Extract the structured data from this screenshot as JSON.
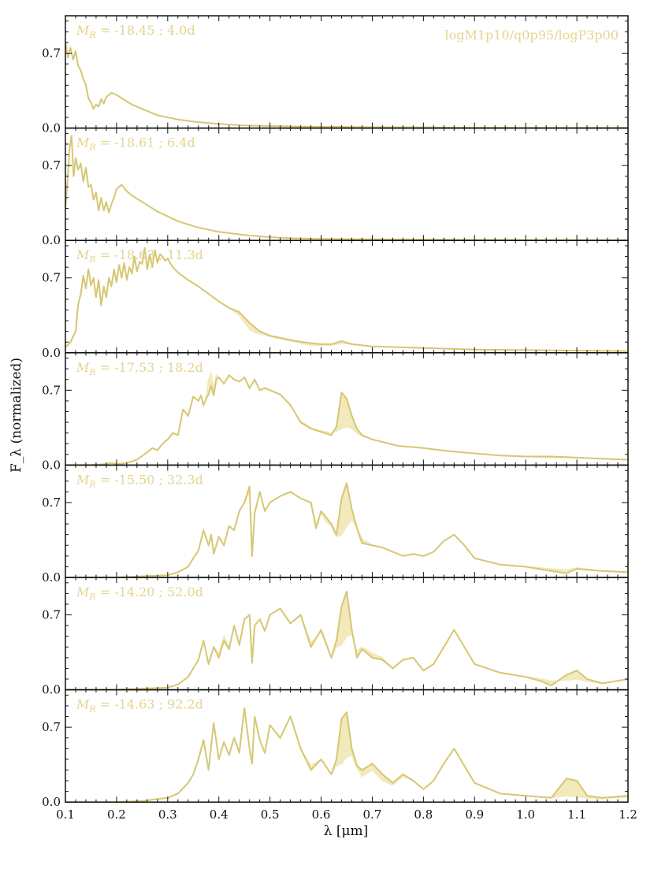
{
  "model": "logM1p10/q0p95/logP3p00",
  "colors": {
    "line": "#d6c772",
    "fill_light": "#f2e9bd",
    "fill_dark": "#d2c06a",
    "label": "#e3d48e",
    "axis": "#111111"
  },
  "chart_data": {
    "type": "line",
    "title": "",
    "xlabel": "λ [μm]",
    "ylabel": "F_λ (normalized)",
    "xlim": [
      0.1,
      1.2
    ],
    "ylim": [
      0.0,
      1.05
    ],
    "xticks": [
      0.1,
      0.2,
      0.3,
      0.4,
      0.5,
      0.6,
      0.7,
      0.8,
      0.9,
      1.0,
      1.1,
      1.2
    ],
    "xtick_labels": [
      "0.1",
      "0.2",
      "0.3",
      "0.4",
      "0.5",
      "0.6",
      "0.7",
      "0.8",
      "0.9",
      "1.0",
      "1.1",
      "1.2"
    ],
    "yticks": [
      0.0,
      0.7
    ],
    "ytick_labels": [
      "0.0",
      "0.7"
    ],
    "grid": false,
    "panels": [
      {
        "label_mag": "-18.45",
        "label_time": "4.0d",
        "x": [
          0.1,
          0.105,
          0.11,
          0.115,
          0.12,
          0.125,
          0.13,
          0.135,
          0.14,
          0.145,
          0.15,
          0.155,
          0.16,
          0.165,
          0.17,
          0.175,
          0.18,
          0.185,
          0.19,
          0.2,
          0.21,
          0.22,
          0.23,
          0.25,
          0.28,
          0.32,
          0.36,
          0.4,
          0.45,
          0.5,
          0.55,
          0.6,
          0.65,
          0.7,
          0.8,
          0.9,
          1.0,
          1.1,
          1.2
        ],
        "y": [
          0.8,
          0.66,
          0.75,
          0.64,
          0.72,
          0.58,
          0.54,
          0.46,
          0.4,
          0.28,
          0.24,
          0.18,
          0.22,
          0.2,
          0.27,
          0.23,
          0.29,
          0.31,
          0.33,
          0.31,
          0.28,
          0.25,
          0.22,
          0.18,
          0.12,
          0.08,
          0.055,
          0.04,
          0.025,
          0.02,
          0.015,
          0.012,
          0.01,
          0.008,
          0.006,
          0.004,
          0.003,
          0.002,
          0.002
        ],
        "y_alt": null
      },
      {
        "label_mag": "-18.61",
        "label_time": "6.4d",
        "x": [
          0.1,
          0.104,
          0.108,
          0.112,
          0.116,
          0.12,
          0.125,
          0.13,
          0.135,
          0.14,
          0.145,
          0.15,
          0.155,
          0.16,
          0.165,
          0.17,
          0.175,
          0.18,
          0.185,
          0.19,
          0.195,
          0.2,
          0.21,
          0.22,
          0.23,
          0.25,
          0.28,
          0.32,
          0.36,
          0.4,
          0.45,
          0.5,
          0.55,
          0.6,
          0.65,
          0.7,
          0.8,
          0.9,
          1.0,
          1.1,
          1.2
        ],
        "y": [
          0.3,
          0.55,
          0.85,
          0.98,
          0.6,
          0.77,
          0.66,
          0.72,
          0.55,
          0.68,
          0.5,
          0.52,
          0.38,
          0.45,
          0.28,
          0.4,
          0.28,
          0.36,
          0.26,
          0.34,
          0.4,
          0.48,
          0.52,
          0.46,
          0.42,
          0.36,
          0.27,
          0.18,
          0.12,
          0.08,
          0.05,
          0.03,
          0.02,
          0.015,
          0.012,
          0.01,
          0.008,
          0.005,
          0.004,
          0.003,
          0.002
        ],
        "y_alt": null
      },
      {
        "label_mag": "-18.63",
        "label_time": "11.3d",
        "x": [
          0.1,
          0.11,
          0.12,
          0.125,
          0.13,
          0.135,
          0.14,
          0.145,
          0.15,
          0.155,
          0.16,
          0.165,
          0.17,
          0.175,
          0.18,
          0.185,
          0.19,
          0.195,
          0.2,
          0.205,
          0.21,
          0.215,
          0.22,
          0.225,
          0.23,
          0.235,
          0.24,
          0.245,
          0.25,
          0.255,
          0.26,
          0.265,
          0.27,
          0.275,
          0.28,
          0.285,
          0.29,
          0.295,
          0.3,
          0.31,
          0.32,
          0.34,
          0.36,
          0.38,
          0.4,
          0.42,
          0.44,
          0.46,
          0.47,
          0.48,
          0.5,
          0.55,
          0.58,
          0.6,
          0.62,
          0.64,
          0.66,
          0.7,
          0.8,
          0.9,
          1.0,
          1.1,
          1.2
        ],
        "y": [
          0.05,
          0.1,
          0.2,
          0.45,
          0.55,
          0.72,
          0.6,
          0.78,
          0.63,
          0.7,
          0.52,
          0.68,
          0.44,
          0.62,
          0.52,
          0.7,
          0.62,
          0.78,
          0.66,
          0.82,
          0.7,
          0.84,
          0.68,
          0.8,
          0.74,
          0.9,
          0.76,
          0.85,
          0.83,
          0.98,
          0.78,
          0.92,
          0.8,
          0.96,
          0.84,
          0.92,
          0.9,
          0.86,
          0.88,
          0.8,
          0.75,
          0.68,
          0.62,
          0.55,
          0.48,
          0.42,
          0.38,
          0.28,
          0.24,
          0.2,
          0.16,
          0.11,
          0.09,
          0.08,
          0.08,
          0.11,
          0.08,
          0.06,
          0.045,
          0.03,
          0.025,
          0.02,
          0.015
        ],
        "y_alt": [
          0.05,
          0.1,
          0.2,
          0.45,
          0.55,
          0.72,
          0.6,
          0.78,
          0.63,
          0.7,
          0.52,
          0.68,
          0.44,
          0.62,
          0.52,
          0.7,
          0.62,
          0.78,
          0.66,
          0.82,
          0.7,
          0.84,
          0.68,
          0.8,
          0.74,
          0.9,
          0.76,
          0.85,
          0.83,
          0.98,
          0.78,
          0.92,
          0.8,
          0.96,
          0.84,
          0.92,
          0.9,
          0.86,
          0.88,
          0.8,
          0.75,
          0.68,
          0.62,
          0.55,
          0.48,
          0.42,
          0.35,
          0.22,
          0.19,
          0.18,
          0.15,
          0.1,
          0.07,
          0.07,
          0.07,
          0.09,
          0.08,
          0.06,
          0.045,
          0.03,
          0.025,
          0.02,
          0.015
        ]
      },
      {
        "label_mag": "-17.53",
        "label_time": "18.2d",
        "x": [
          0.1,
          0.15,
          0.18,
          0.19,
          0.2,
          0.22,
          0.24,
          0.26,
          0.27,
          0.28,
          0.29,
          0.3,
          0.31,
          0.32,
          0.33,
          0.34,
          0.35,
          0.36,
          0.365,
          0.37,
          0.375,
          0.38,
          0.385,
          0.39,
          0.395,
          0.4,
          0.41,
          0.42,
          0.43,
          0.44,
          0.45,
          0.46,
          0.47,
          0.48,
          0.49,
          0.5,
          0.52,
          0.54,
          0.56,
          0.58,
          0.6,
          0.62,
          0.63,
          0.64,
          0.65,
          0.66,
          0.67,
          0.68,
          0.7,
          0.75,
          0.8,
          0.85,
          0.9,
          0.95,
          1.0,
          1.05,
          1.1,
          1.15,
          1.2
        ],
        "y": [
          0.0,
          0.0,
          0.01,
          0.02,
          0.01,
          0.02,
          0.05,
          0.12,
          0.16,
          0.14,
          0.2,
          0.24,
          0.3,
          0.28,
          0.52,
          0.46,
          0.64,
          0.6,
          0.65,
          0.56,
          0.62,
          0.66,
          0.74,
          0.65,
          0.8,
          0.82,
          0.76,
          0.84,
          0.8,
          0.78,
          0.82,
          0.72,
          0.8,
          0.7,
          0.72,
          0.7,
          0.66,
          0.56,
          0.4,
          0.34,
          0.31,
          0.28,
          0.36,
          0.68,
          0.62,
          0.46,
          0.34,
          0.28,
          0.24,
          0.18,
          0.16,
          0.13,
          0.11,
          0.09,
          0.08,
          0.08,
          0.07,
          0.06,
          0.05
        ],
        "y_alt": [
          0.0,
          0.0,
          0.01,
          0.02,
          0.01,
          0.02,
          0.05,
          0.12,
          0.16,
          0.14,
          0.2,
          0.24,
          0.3,
          0.28,
          0.52,
          0.46,
          0.64,
          0.6,
          0.65,
          0.56,
          0.62,
          0.8,
          0.86,
          0.7,
          0.84,
          0.82,
          0.76,
          0.84,
          0.8,
          0.78,
          0.82,
          0.72,
          0.8,
          0.7,
          0.72,
          0.7,
          0.66,
          0.56,
          0.41,
          0.35,
          0.32,
          0.3,
          0.32,
          0.34,
          0.36,
          0.34,
          0.3,
          0.27,
          0.24,
          0.18,
          0.16,
          0.13,
          0.11,
          0.09,
          0.08,
          0.07,
          0.07,
          0.06,
          0.05
        ]
      },
      {
        "label_mag": "-15.50",
        "label_time": "32.3d",
        "x": [
          0.1,
          0.2,
          0.25,
          0.3,
          0.32,
          0.34,
          0.35,
          0.36,
          0.37,
          0.38,
          0.385,
          0.39,
          0.4,
          0.41,
          0.42,
          0.43,
          0.44,
          0.45,
          0.46,
          0.465,
          0.47,
          0.48,
          0.49,
          0.5,
          0.52,
          0.54,
          0.56,
          0.58,
          0.59,
          0.6,
          0.61,
          0.62,
          0.63,
          0.64,
          0.65,
          0.66,
          0.67,
          0.68,
          0.7,
          0.72,
          0.74,
          0.76,
          0.78,
          0.8,
          0.82,
          0.84,
          0.86,
          0.88,
          0.9,
          0.95,
          1.0,
          1.05,
          1.08,
          1.1,
          1.15,
          1.2
        ],
        "y": [
          0.0,
          0.0,
          0.01,
          0.02,
          0.05,
          0.1,
          0.18,
          0.25,
          0.44,
          0.3,
          0.4,
          0.22,
          0.38,
          0.3,
          0.48,
          0.44,
          0.62,
          0.7,
          0.85,
          0.2,
          0.6,
          0.8,
          0.62,
          0.7,
          0.76,
          0.8,
          0.74,
          0.7,
          0.46,
          0.62,
          0.56,
          0.5,
          0.4,
          0.74,
          0.88,
          0.64,
          0.46,
          0.32,
          0.3,
          0.28,
          0.24,
          0.2,
          0.22,
          0.2,
          0.24,
          0.34,
          0.4,
          0.3,
          0.18,
          0.12,
          0.1,
          0.06,
          0.04,
          0.08,
          0.06,
          0.05
        ],
        "y_alt": [
          0.0,
          0.0,
          0.01,
          0.02,
          0.05,
          0.1,
          0.18,
          0.25,
          0.44,
          0.3,
          0.4,
          0.22,
          0.38,
          0.3,
          0.48,
          0.44,
          0.62,
          0.7,
          0.8,
          0.2,
          0.6,
          0.8,
          0.62,
          0.7,
          0.76,
          0.8,
          0.74,
          0.7,
          0.5,
          0.6,
          0.52,
          0.48,
          0.38,
          0.4,
          0.48,
          0.54,
          0.46,
          0.36,
          0.3,
          0.28,
          0.24,
          0.2,
          0.22,
          0.2,
          0.24,
          0.34,
          0.4,
          0.3,
          0.18,
          0.12,
          0.1,
          0.08,
          0.07,
          0.09,
          0.06,
          0.05
        ]
      },
      {
        "label_mag": "-14.20",
        "label_time": "52.0d",
        "x": [
          0.1,
          0.2,
          0.25,
          0.3,
          0.32,
          0.34,
          0.35,
          0.36,
          0.37,
          0.38,
          0.39,
          0.4,
          0.41,
          0.42,
          0.43,
          0.44,
          0.45,
          0.46,
          0.465,
          0.47,
          0.48,
          0.49,
          0.5,
          0.52,
          0.54,
          0.56,
          0.58,
          0.6,
          0.62,
          0.63,
          0.64,
          0.65,
          0.66,
          0.67,
          0.68,
          0.7,
          0.72,
          0.74,
          0.76,
          0.78,
          0.8,
          0.82,
          0.84,
          0.86,
          0.88,
          0.9,
          0.95,
          1.0,
          1.03,
          1.05,
          1.08,
          1.1,
          1.12,
          1.15,
          1.2
        ],
        "y": [
          0.0,
          0.0,
          0.01,
          0.02,
          0.05,
          0.12,
          0.2,
          0.28,
          0.46,
          0.24,
          0.4,
          0.3,
          0.46,
          0.38,
          0.6,
          0.42,
          0.66,
          0.7,
          0.25,
          0.6,
          0.66,
          0.55,
          0.7,
          0.76,
          0.62,
          0.7,
          0.4,
          0.56,
          0.3,
          0.46,
          0.78,
          0.92,
          0.56,
          0.3,
          0.38,
          0.3,
          0.28,
          0.2,
          0.28,
          0.3,
          0.18,
          0.24,
          0.4,
          0.56,
          0.4,
          0.24,
          0.16,
          0.12,
          0.08,
          0.04,
          0.14,
          0.18,
          0.1,
          0.06,
          0.1
        ],
        "y_alt": [
          0.0,
          0.0,
          0.01,
          0.02,
          0.05,
          0.12,
          0.2,
          0.28,
          0.46,
          0.24,
          0.4,
          0.34,
          0.5,
          0.4,
          0.6,
          0.42,
          0.66,
          0.7,
          0.25,
          0.6,
          0.66,
          0.55,
          0.7,
          0.76,
          0.62,
          0.7,
          0.44,
          0.54,
          0.3,
          0.4,
          0.42,
          0.5,
          0.52,
          0.36,
          0.4,
          0.34,
          0.3,
          0.2,
          0.28,
          0.3,
          0.18,
          0.24,
          0.4,
          0.56,
          0.4,
          0.24,
          0.16,
          0.12,
          0.1,
          0.08,
          0.09,
          0.1,
          0.08,
          0.06,
          0.1
        ]
      },
      {
        "label_mag": "-14.63",
        "label_time": "92.2d",
        "x": [
          0.1,
          0.2,
          0.25,
          0.3,
          0.32,
          0.34,
          0.35,
          0.36,
          0.37,
          0.38,
          0.39,
          0.4,
          0.41,
          0.42,
          0.43,
          0.44,
          0.45,
          0.46,
          0.465,
          0.47,
          0.48,
          0.49,
          0.5,
          0.52,
          0.54,
          0.56,
          0.58,
          0.6,
          0.62,
          0.63,
          0.64,
          0.65,
          0.66,
          0.67,
          0.68,
          0.7,
          0.72,
          0.74,
          0.76,
          0.78,
          0.8,
          0.82,
          0.84,
          0.86,
          0.88,
          0.9,
          0.95,
          1.0,
          1.05,
          1.08,
          1.1,
          1.12,
          1.15,
          1.2
        ],
        "y": [
          0.0,
          0.0,
          0.01,
          0.04,
          0.08,
          0.18,
          0.26,
          0.4,
          0.58,
          0.3,
          0.74,
          0.4,
          0.56,
          0.44,
          0.6,
          0.46,
          0.88,
          0.5,
          0.36,
          0.8,
          0.58,
          0.46,
          0.72,
          0.6,
          0.8,
          0.5,
          0.3,
          0.4,
          0.26,
          0.4,
          0.78,
          0.84,
          0.5,
          0.34,
          0.3,
          0.36,
          0.26,
          0.18,
          0.26,
          0.2,
          0.12,
          0.2,
          0.36,
          0.5,
          0.34,
          0.18,
          0.08,
          0.06,
          0.04,
          0.22,
          0.2,
          0.06,
          0.04,
          0.06
        ],
        "y_alt": [
          0.0,
          0.0,
          0.01,
          0.04,
          0.08,
          0.18,
          0.26,
          0.4,
          0.58,
          0.3,
          0.74,
          0.4,
          0.56,
          0.44,
          0.6,
          0.46,
          0.88,
          0.5,
          0.36,
          0.8,
          0.58,
          0.46,
          0.72,
          0.6,
          0.8,
          0.5,
          0.34,
          0.4,
          0.26,
          0.34,
          0.36,
          0.42,
          0.44,
          0.32,
          0.24,
          0.3,
          0.2,
          0.16,
          0.24,
          0.2,
          0.12,
          0.2,
          0.36,
          0.5,
          0.34,
          0.18,
          0.08,
          0.06,
          0.04,
          0.06,
          0.05,
          0.04,
          0.03,
          0.05
        ]
      }
    ]
  }
}
